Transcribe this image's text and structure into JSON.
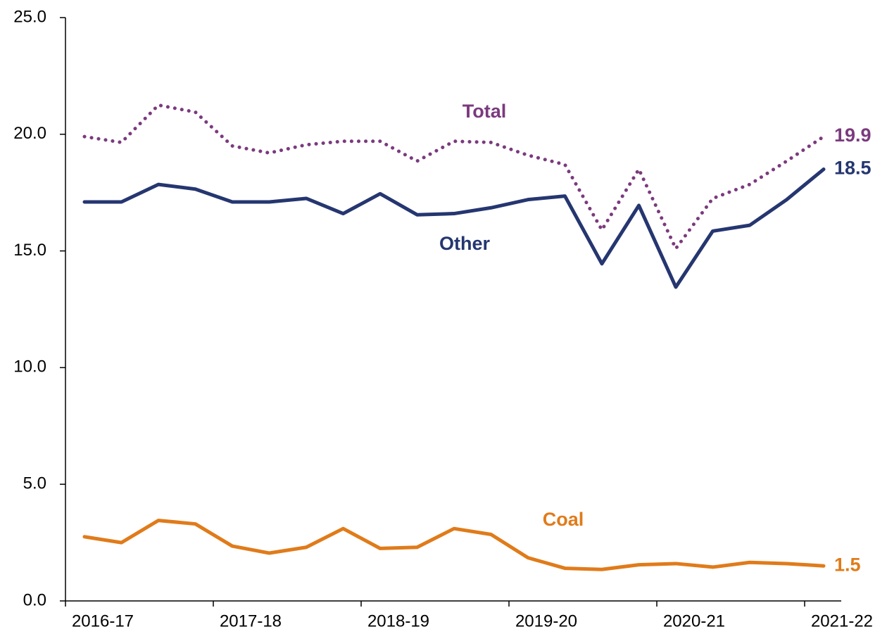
{
  "chart_data": {
    "type": "line",
    "categories": [
      "2016-17",
      null,
      null,
      null,
      "2017-18",
      null,
      null,
      null,
      "2018-19",
      null,
      null,
      null,
      "2019-20",
      null,
      null,
      null,
      "2020-21",
      null,
      null,
      null,
      "2021-22"
    ],
    "series": [
      {
        "name": "Total",
        "color": "#7b3a7e",
        "dash": "dotted",
        "values": [
          19.9,
          19.65,
          21.25,
          20.95,
          19.5,
          19.2,
          19.55,
          19.7,
          19.7,
          18.85,
          19.7,
          19.65,
          19.1,
          18.7,
          15.9,
          18.5,
          15.1,
          17.25,
          17.85,
          18.85,
          19.9
        ]
      },
      {
        "name": "Other",
        "color": "#253670",
        "dash": "solid",
        "values": [
          17.1,
          17.1,
          17.85,
          17.65,
          17.1,
          17.1,
          17.25,
          16.6,
          17.45,
          16.55,
          16.6,
          16.85,
          17.2,
          17.35,
          14.45,
          16.95,
          13.45,
          15.85,
          16.1,
          17.2,
          18.5
        ]
      },
      {
        "name": "Coal",
        "color": "#e07b1a",
        "dash": "solid",
        "values": [
          2.75,
          2.5,
          3.45,
          3.3,
          2.35,
          2.05,
          2.3,
          3.1,
          2.25,
          2.3,
          3.1,
          2.85,
          1.85,
          1.4,
          1.35,
          1.55,
          1.6,
          1.45,
          1.65,
          1.6,
          1.5
        ]
      }
    ],
    "ylim": [
      0,
      25
    ],
    "yticks": [
      {
        "value": 0,
        "label": "0.0"
      },
      {
        "value": 5,
        "label": "5.0"
      },
      {
        "value": 10,
        "label": "10.0"
      },
      {
        "value": 15,
        "label": "15.0"
      },
      {
        "value": 20,
        "label": "20.0"
      },
      {
        "value": 25,
        "label": "25.0"
      }
    ],
    "grid": false
  }
}
